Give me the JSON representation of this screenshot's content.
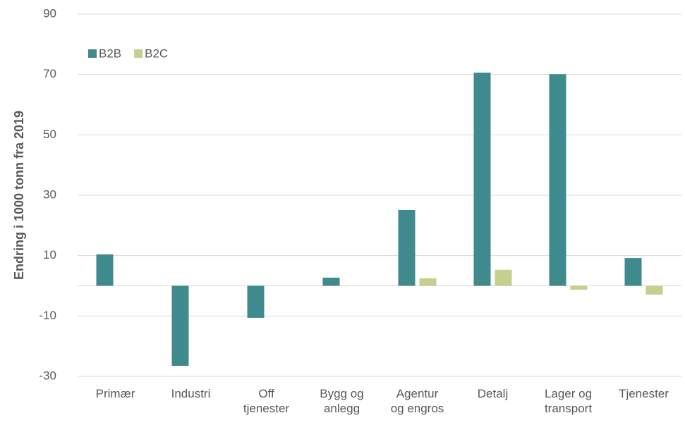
{
  "chart_data": {
    "type": "bar",
    "y_label": "Endring i 1000 tonn fra 2019",
    "categories": [
      "Primær",
      "Industri",
      "Off\ntjenester",
      "Bygg og\nanlegg",
      "Agentur\nog engros",
      "Detalj",
      "Lager og\ntransport",
      "Tjenester"
    ],
    "series": [
      {
        "name": "B2B",
        "color": "#3f8a8c",
        "values": [
          10.4,
          -26.5,
          -10.6,
          2.7,
          25.1,
          70.6,
          70.1,
          9.2
        ]
      },
      {
        "name": "B2C",
        "color": "#c5cf8e",
        "values": [
          0,
          0,
          0,
          0,
          2.5,
          5.3,
          -1.3,
          -2.9
        ]
      }
    ],
    "ylim": [
      -30,
      90
    ],
    "yticks": [
      -30,
      -10,
      10,
      30,
      50,
      70,
      90
    ],
    "grid": true,
    "legend": "top-left"
  }
}
